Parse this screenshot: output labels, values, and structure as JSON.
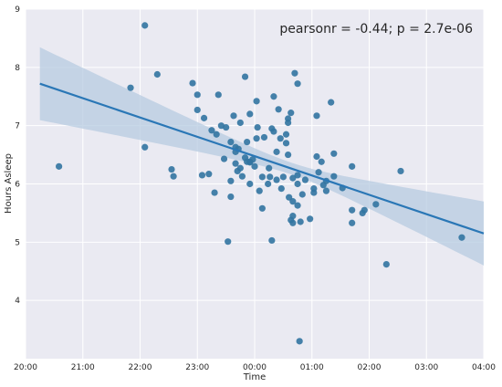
{
  "chart_data": {
    "type": "scatter",
    "xlabel": "Time",
    "ylabel": "Hours Asleep",
    "annotation": "pearsonr = -0.44; p = 2.7e-06",
    "xlim": [
      "20:00",
      "04:00"
    ],
    "ylim": [
      3,
      9
    ],
    "x_ticks": [
      "20:00",
      "21:00",
      "22:00",
      "23:00",
      "00:00",
      "01:00",
      "02:00",
      "03:00",
      "04:00"
    ],
    "y_ticks": [
      4,
      5,
      6,
      7,
      8,
      9
    ],
    "grid": true,
    "colors": {
      "points": "#3274a1",
      "line": "#2a77b6",
      "band": "#b7cbe0",
      "background": "#eaeaf2",
      "grid": "#ffffff"
    },
    "regression": {
      "line_start": {
        "x": "20:15",
        "y": 7.72
      },
      "line_end": {
        "x": "04:00",
        "y": 5.15
      },
      "ci_start": [
        7.1,
        8.35
      ],
      "ci_end": [
        4.62,
        5.72
      ]
    },
    "points": [
      {
        "x": "20:35",
        "y": 6.3
      },
      {
        "x": "21:50",
        "y": 7.65
      },
      {
        "x": "22:05",
        "y": 8.72
      },
      {
        "x": "22:05",
        "y": 6.63
      },
      {
        "x": "22:18",
        "y": 7.88
      },
      {
        "x": "22:33",
        "y": 6.25
      },
      {
        "x": "22:35",
        "y": 6.13
      },
      {
        "x": "22:55",
        "y": 7.73
      },
      {
        "x": "23:00",
        "y": 7.53
      },
      {
        "x": "23:00",
        "y": 7.27
      },
      {
        "x": "23:05",
        "y": 6.15
      },
      {
        "x": "23:07",
        "y": 7.13
      },
      {
        "x": "23:12",
        "y": 6.17
      },
      {
        "x": "23:15",
        "y": 6.92
      },
      {
        "x": "23:18",
        "y": 5.85
      },
      {
        "x": "23:20",
        "y": 6.85
      },
      {
        "x": "23:22",
        "y": 7.53
      },
      {
        "x": "23:25",
        "y": 7.0
      },
      {
        "x": "23:28",
        "y": 6.43
      },
      {
        "x": "23:30",
        "y": 6.97
      },
      {
        "x": "23:32",
        "y": 5.01
      },
      {
        "x": "23:35",
        "y": 6.72
      },
      {
        "x": "23:35",
        "y": 6.05
      },
      {
        "x": "23:35",
        "y": 5.78
      },
      {
        "x": "23:38",
        "y": 7.17
      },
      {
        "x": "23:40",
        "y": 6.55
      },
      {
        "x": "23:40",
        "y": 6.63
      },
      {
        "x": "23:40",
        "y": 6.35
      },
      {
        "x": "23:42",
        "y": 6.22
      },
      {
        "x": "23:43",
        "y": 6.6
      },
      {
        "x": "23:45",
        "y": 7.05
      },
      {
        "x": "23:45",
        "y": 6.27
      },
      {
        "x": "23:47",
        "y": 6.13
      },
      {
        "x": "23:50",
        "y": 7.84
      },
      {
        "x": "23:50",
        "y": 6.45
      },
      {
        "x": "23:52",
        "y": 6.72
      },
      {
        "x": "23:52",
        "y": 6.38
      },
      {
        "x": "23:55",
        "y": 6.37
      },
      {
        "x": "23:55",
        "y": 6.38
      },
      {
        "x": "23:55",
        "y": 6.0
      },
      {
        "x": "23:55",
        "y": 7.2
      },
      {
        "x": "23:58",
        "y": 6.42
      },
      {
        "x": "00:00",
        "y": 6.3
      },
      {
        "x": "00:02",
        "y": 7.42
      },
      {
        "x": "00:02",
        "y": 6.78
      },
      {
        "x": "00:03",
        "y": 6.97
      },
      {
        "x": "00:05",
        "y": 5.88
      },
      {
        "x": "00:08",
        "y": 6.12
      },
      {
        "x": "00:08",
        "y": 5.58
      },
      {
        "x": "00:10",
        "y": 6.8
      },
      {
        "x": "00:14",
        "y": 6.0
      },
      {
        "x": "00:15",
        "y": 6.27
      },
      {
        "x": "00:16",
        "y": 6.12
      },
      {
        "x": "00:18",
        "y": 6.95
      },
      {
        "x": "00:18",
        "y": 5.03
      },
      {
        "x": "00:20",
        "y": 6.9
      },
      {
        "x": "00:20",
        "y": 7.5
      },
      {
        "x": "00:23",
        "y": 6.55
      },
      {
        "x": "00:23",
        "y": 6.07
      },
      {
        "x": "00:25",
        "y": 7.28
      },
      {
        "x": "00:27",
        "y": 6.78
      },
      {
        "x": "00:28",
        "y": 5.92
      },
      {
        "x": "00:30",
        "y": 6.12
      },
      {
        "x": "00:33",
        "y": 6.85
      },
      {
        "x": "00:33",
        "y": 6.7
      },
      {
        "x": "00:35",
        "y": 7.05
      },
      {
        "x": "00:35",
        "y": 7.12
      },
      {
        "x": "00:35",
        "y": 6.5
      },
      {
        "x": "00:36",
        "y": 5.77
      },
      {
        "x": "00:38",
        "y": 7.22
      },
      {
        "x": "00:38",
        "y": 5.38
      },
      {
        "x": "00:40",
        "y": 6.1
      },
      {
        "x": "00:40",
        "y": 5.7
      },
      {
        "x": "00:40",
        "y": 5.45
      },
      {
        "x": "00:40",
        "y": 5.33
      },
      {
        "x": "00:42",
        "y": 7.9
      },
      {
        "x": "00:45",
        "y": 7.72
      },
      {
        "x": "00:45",
        "y": 6.15
      },
      {
        "x": "00:45",
        "y": 6.0
      },
      {
        "x": "00:45",
        "y": 5.63
      },
      {
        "x": "00:47",
        "y": 3.3
      },
      {
        "x": "00:48",
        "y": 5.35
      },
      {
        "x": "00:50",
        "y": 5.82
      },
      {
        "x": "00:53",
        "y": 6.07
      },
      {
        "x": "00:58",
        "y": 5.4
      },
      {
        "x": "01:02",
        "y": 5.85
      },
      {
        "x": "01:02",
        "y": 5.92
      },
      {
        "x": "01:05",
        "y": 7.17
      },
      {
        "x": "01:05",
        "y": 6.47
      },
      {
        "x": "01:07",
        "y": 6.2
      },
      {
        "x": "01:10",
        "y": 6.38
      },
      {
        "x": "01:12",
        "y": 5.98
      },
      {
        "x": "01:15",
        "y": 6.05
      },
      {
        "x": "01:15",
        "y": 5.88
      },
      {
        "x": "01:20",
        "y": 7.4
      },
      {
        "x": "01:23",
        "y": 6.52
      },
      {
        "x": "01:23",
        "y": 6.13
      },
      {
        "x": "01:32",
        "y": 5.93
      },
      {
        "x": "01:42",
        "y": 6.3
      },
      {
        "x": "01:42",
        "y": 5.55
      },
      {
        "x": "01:42",
        "y": 5.33
      },
      {
        "x": "01:53",
        "y": 5.5
      },
      {
        "x": "01:55",
        "y": 5.55
      },
      {
        "x": "02:07",
        "y": 5.65
      },
      {
        "x": "02:18",
        "y": 4.62
      },
      {
        "x": "02:33",
        "y": 6.22
      },
      {
        "x": "03:37",
        "y": 5.08
      }
    ]
  }
}
